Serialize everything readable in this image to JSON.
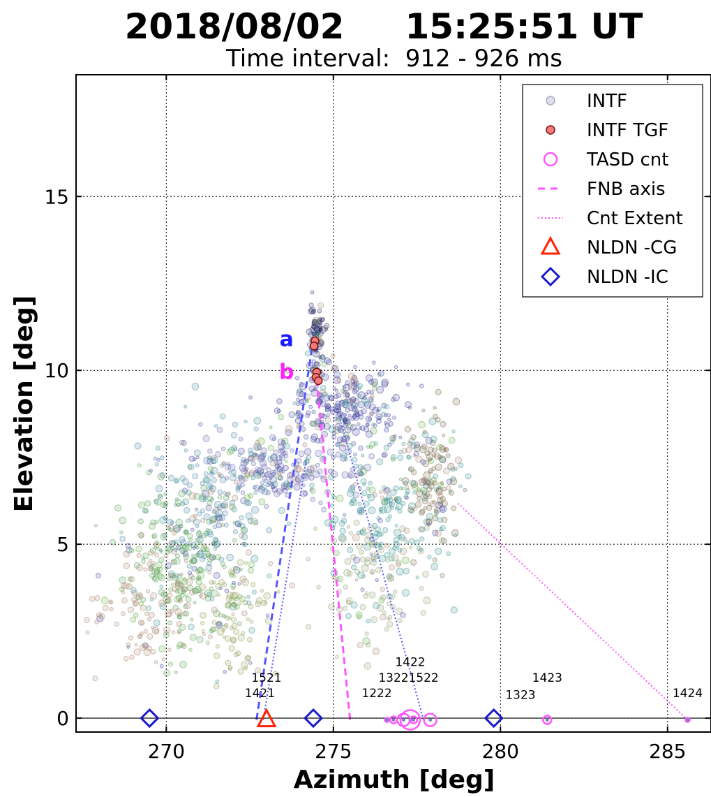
{
  "chart_data": {
    "type": "scatter",
    "title": "2018/08/02     15:25:51 UT",
    "subtitle": "Time interval:  912 - 926 ms",
    "xlabel": "Azimuth [deg]",
    "ylabel": "Elevation [deg]",
    "xlim": [
      267.3,
      286.3
    ],
    "ylim": [
      -0.4,
      18.5
    ],
    "xticks": [
      270,
      275,
      280,
      285
    ],
    "yticks": [
      0,
      5,
      10,
      15
    ],
    "grid": true,
    "legend_position": "top-right",
    "legend": [
      {
        "label": "INTF",
        "marker": "circle",
        "color": "#c8cce6"
      },
      {
        "label": "INTF TGF",
        "marker": "circle",
        "color": "#f07c7c"
      },
      {
        "label": "TASD cnt",
        "marker": "open-circle",
        "color": "#ff55ff"
      },
      {
        "label": "FNB axis",
        "marker": "dashed-line",
        "color": "#ff55ff"
      },
      {
        "label": "Cnt Extent",
        "marker": "dotted-line",
        "color": "#ff55ff"
      },
      {
        "label": "NLDN -CG",
        "marker": "open-triangle",
        "color": "#ff2200"
      },
      {
        "label": "NLDN -IC",
        "marker": "open-diamond",
        "color": "#1a1acc"
      }
    ],
    "series": [
      {
        "name": "INTF",
        "colors": [
          "#3a3a9a",
          "#2e8b8b",
          "#5aa83a",
          "#a5806a"
        ],
        "clusters": [
          {
            "x": 274.5,
            "y": 11.0,
            "sx": 0.12,
            "sy": 0.55,
            "n": 80,
            "color": "#1c1c5a"
          },
          {
            "x": 275.3,
            "y": 8.9,
            "sx": 0.9,
            "sy": 0.6,
            "n": 260,
            "color": "#3a3a9a"
          },
          {
            "x": 273.3,
            "y": 7.2,
            "sx": 1.1,
            "sy": 0.45,
            "n": 200,
            "color": "#5a5aaa"
          },
          {
            "x": 271.3,
            "y": 6.4,
            "sx": 0.9,
            "sy": 1.1,
            "n": 200,
            "color": "#3c7d9a"
          },
          {
            "x": 270.5,
            "y": 4.5,
            "sx": 0.9,
            "sy": 1.2,
            "n": 220,
            "color": "#4e9a4e"
          },
          {
            "x": 269.3,
            "y": 3.2,
            "sx": 0.8,
            "sy": 0.9,
            "n": 120,
            "color": "#a5806a"
          },
          {
            "x": 272.0,
            "y": 3.0,
            "sx": 0.5,
            "sy": 0.8,
            "n": 100,
            "color": "#8a9a4e"
          },
          {
            "x": 276.6,
            "y": 6.0,
            "sx": 1.0,
            "sy": 1.1,
            "n": 200,
            "color": "#2e8b8b"
          },
          {
            "x": 277.9,
            "y": 6.8,
            "sx": 0.45,
            "sy": 1.1,
            "n": 120,
            "color": "#6a5a3a"
          },
          {
            "x": 276.2,
            "y": 4.0,
            "sx": 0.8,
            "sy": 0.9,
            "n": 100,
            "color": "#8a9a6a"
          }
        ]
      },
      {
        "name": "INTF TGF",
        "x": [
          274.45,
          274.42,
          274.5,
          274.48,
          274.55
        ],
        "y": [
          10.85,
          10.7,
          9.95,
          9.8,
          9.7
        ]
      },
      {
        "name": "TASD cnt",
        "x": [
          276.6,
          276.8,
          277.1,
          277.3,
          277.4,
          277.9,
          281.4,
          285.6
        ],
        "y": [
          -0.05,
          -0.05,
          -0.05,
          -0.05,
          -0.05,
          -0.05,
          -0.05,
          -0.05
        ],
        "r": [
          3,
          5,
          9,
          14,
          5,
          9,
          6,
          3
        ]
      },
      {
        "name": "NLDN -CG",
        "x": [
          273.0
        ],
        "y": [
          -0.05
        ]
      },
      {
        "name": "NLDN -IC",
        "x": [
          269.5,
          274.4,
          279.8
        ],
        "y": [
          0.0,
          0.0,
          0.0
        ]
      }
    ],
    "fnb_axes": [
      {
        "x1": 272.7,
        "y1": -0.05,
        "x2": 274.4,
        "y2": 10.9,
        "color": "#5555ff"
      },
      {
        "x1": 275.5,
        "y1": -0.05,
        "x2": 274.5,
        "y2": 9.7,
        "color": "#ff55ff"
      }
    ],
    "cnt_extents": [
      {
        "x1": 272.9,
        "y1": -0.05,
        "x2": 274.2,
        "y2": 7.5,
        "color": "#5555ff"
      },
      {
        "x1": 277.7,
        "y1": -0.05,
        "x2": 275.2,
        "y2": 8.6,
        "color": "#5555ff"
      },
      {
        "x1": 285.6,
        "y1": -0.05,
        "x2": 278.7,
        "y2": 6.2,
        "color": "#ff55ff"
      }
    ],
    "detector_labels": [
      {
        "text": "1421",
        "x": 272.8,
        "y": 0.6
      },
      {
        "text": "1521",
        "x": 273.0,
        "y": 1.05
      },
      {
        "text": "1222",
        "x": 276.3,
        "y": 0.6
      },
      {
        "text": "1322",
        "x": 276.8,
        "y": 1.05
      },
      {
        "text": "1422",
        "x": 277.3,
        "y": 1.5
      },
      {
        "text": "1522",
        "x": 277.7,
        "y": 1.05
      },
      {
        "text": "1323",
        "x": 280.6,
        "y": 0.55
      },
      {
        "text": "1423",
        "x": 281.4,
        "y": 1.05
      },
      {
        "text": "1424",
        "x": 285.6,
        "y": 0.6
      }
    ],
    "annotations": [
      {
        "text": "a",
        "x": 273.6,
        "y": 10.7,
        "color": "#1a1aff"
      },
      {
        "text": "b",
        "x": 273.6,
        "y": 9.75,
        "color": "#ff22ff"
      }
    ]
  }
}
